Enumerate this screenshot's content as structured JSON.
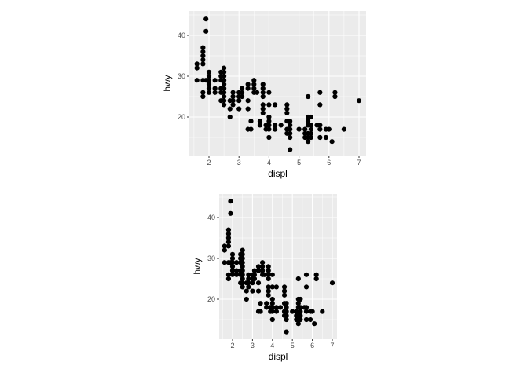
{
  "chart_data": [
    {
      "type": "scatter",
      "xlabel": "displ",
      "ylabel": "hwy",
      "xlim": [
        1.4,
        7.3
      ],
      "ylim": [
        10.4,
        45.6
      ],
      "xticks": [
        "2",
        "3",
        "4",
        "5",
        "6",
        "7"
      ],
      "yticks": [
        "20",
        "30",
        "40"
      ],
      "grid": true,
      "panel_background": "#EBEBEB",
      "point_color": "#000000",
      "points": "shared"
    },
    {
      "type": "scatter",
      "xlabel": "displ",
      "ylabel": "hwy",
      "xlim": [
        1.4,
        7.3
      ],
      "ylim": [
        10.4,
        45.6
      ],
      "xticks": [
        "2",
        "3",
        "4",
        "5",
        "6",
        "7"
      ],
      "yticks": [
        "20",
        "30",
        "40"
      ],
      "grid": true,
      "panel_background": "#EBEBEB",
      "point_color": "#000000",
      "points": "shared"
    }
  ],
  "points": [
    [
      1.6,
      33
    ],
    [
      1.6,
      32
    ],
    [
      1.6,
      29
    ],
    [
      1.8,
      37
    ],
    [
      1.8,
      36
    ],
    [
      1.8,
      35
    ],
    [
      1.8,
      34
    ],
    [
      1.8,
      33
    ],
    [
      1.8,
      29
    ],
    [
      1.8,
      26
    ],
    [
      1.8,
      25
    ],
    [
      1.9,
      44
    ],
    [
      1.9,
      41
    ],
    [
      1.9,
      29
    ],
    [
      2.0,
      31
    ],
    [
      2.0,
      30
    ],
    [
      2.0,
      29
    ],
    [
      2.0,
      28
    ],
    [
      2.0,
      27
    ],
    [
      2.0,
      26
    ],
    [
      2.2,
      29
    ],
    [
      2.2,
      27
    ],
    [
      2.2,
      26
    ],
    [
      2.4,
      31
    ],
    [
      2.4,
      30
    ],
    [
      2.4,
      29
    ],
    [
      2.4,
      27
    ],
    [
      2.4,
      26
    ],
    [
      2.4,
      24
    ],
    [
      2.5,
      32
    ],
    [
      2.5,
      31
    ],
    [
      2.5,
      30
    ],
    [
      2.5,
      29
    ],
    [
      2.5,
      28
    ],
    [
      2.5,
      27
    ],
    [
      2.5,
      26
    ],
    [
      2.5,
      25
    ],
    [
      2.5,
      24
    ],
    [
      2.5,
      23
    ],
    [
      2.7,
      24
    ],
    [
      2.7,
      22
    ],
    [
      2.7,
      20
    ],
    [
      2.8,
      26
    ],
    [
      2.8,
      25
    ],
    [
      2.8,
      24
    ],
    [
      2.8,
      23
    ],
    [
      3.0,
      26
    ],
    [
      3.0,
      25
    ],
    [
      3.0,
      24
    ],
    [
      3.0,
      22
    ],
    [
      3.1,
      27
    ],
    [
      3.1,
      26
    ],
    [
      3.1,
      25
    ],
    [
      3.3,
      28
    ],
    [
      3.3,
      27
    ],
    [
      3.3,
      24
    ],
    [
      3.3,
      22
    ],
    [
      3.3,
      17
    ],
    [
      3.4,
      19
    ],
    [
      3.4,
      17
    ],
    [
      3.5,
      29
    ],
    [
      3.5,
      28
    ],
    [
      3.5,
      27
    ],
    [
      3.5,
      26
    ],
    [
      3.6,
      26
    ],
    [
      3.7,
      19
    ],
    [
      3.7,
      18
    ],
    [
      3.8,
      28
    ],
    [
      3.8,
      27
    ],
    [
      3.8,
      26
    ],
    [
      3.8,
      25
    ],
    [
      3.8,
      23
    ],
    [
      3.8,
      22
    ],
    [
      3.8,
      21
    ],
    [
      3.9,
      18
    ],
    [
      3.9,
      17
    ],
    [
      4.0,
      26
    ],
    [
      4.0,
      23
    ],
    [
      4.0,
      20
    ],
    [
      4.0,
      19
    ],
    [
      4.0,
      18
    ],
    [
      4.0,
      17
    ],
    [
      4.0,
      15
    ],
    [
      4.2,
      23
    ],
    [
      4.2,
      18
    ],
    [
      4.2,
      17
    ],
    [
      4.4,
      18
    ],
    [
      4.6,
      23
    ],
    [
      4.6,
      22
    ],
    [
      4.6,
      21
    ],
    [
      4.6,
      19
    ],
    [
      4.6,
      17
    ],
    [
      4.6,
      16
    ],
    [
      4.7,
      19
    ],
    [
      4.7,
      18
    ],
    [
      4.7,
      17
    ],
    [
      4.7,
      16
    ],
    [
      4.7,
      15
    ],
    [
      4.7,
      12
    ],
    [
      5.0,
      17
    ],
    [
      5.2,
      17
    ],
    [
      5.2,
      16
    ],
    [
      5.2,
      15
    ],
    [
      5.3,
      25
    ],
    [
      5.3,
      20
    ],
    [
      5.3,
      19
    ],
    [
      5.3,
      18
    ],
    [
      5.3,
      16
    ],
    [
      5.3,
      15
    ],
    [
      5.3,
      14
    ],
    [
      5.4,
      20
    ],
    [
      5.4,
      18
    ],
    [
      5.4,
      17
    ],
    [
      5.4,
      16
    ],
    [
      5.4,
      15
    ],
    [
      5.6,
      18
    ],
    [
      5.7,
      26
    ],
    [
      5.7,
      23
    ],
    [
      5.7,
      18
    ],
    [
      5.7,
      17
    ],
    [
      5.7,
      15
    ],
    [
      5.9,
      17
    ],
    [
      5.9,
      15
    ],
    [
      6.0,
      17
    ],
    [
      6.1,
      14
    ],
    [
      6.2,
      26
    ],
    [
      6.2,
      25
    ],
    [
      6.5,
      17
    ],
    [
      7.0,
      24
    ]
  ]
}
